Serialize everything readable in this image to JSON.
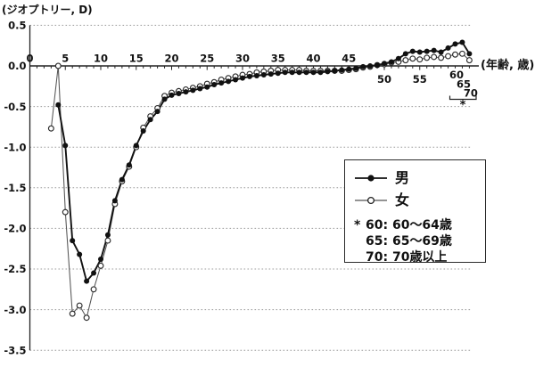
{
  "chart_data": {
    "type": "line",
    "title": "(ジオプトリー, D)",
    "x_unit_label": "(年齢, 歳)",
    "xlabel": "年齢 (歳)",
    "ylabel": "ジオプトリー (D)",
    "ylim": [
      -3.5,
      0.5
    ],
    "grid": "dotted horizontal gridlines every 0.5 D; solid axis at 0.0",
    "legend_position": "right-center boxed",
    "y_tick_labels": [
      "0.5",
      "0.0",
      "-0.5",
      "-1.0",
      "-1.5",
      "-2.0",
      "-2.5",
      "-3.0",
      "-3.5"
    ],
    "x_tick_labels_above_axis": [
      "0",
      "5",
      "10",
      "15",
      "20",
      "25",
      "30",
      "35",
      "40",
      "45"
    ],
    "x_tick_labels_below_axis": [
      "50",
      "55"
    ],
    "x_category_ticks": [
      {
        "label": "60",
        "position": 60,
        "meaning": "60〜64歳"
      },
      {
        "label": "65",
        "position": 61,
        "meaning": "65〜69歳"
      },
      {
        "label": "70",
        "position": 62,
        "meaning": "70歳以上"
      }
    ],
    "category_footnote_symbol": "*",
    "series": [
      {
        "name": "女",
        "marker": "open-circle",
        "line_color": "#555555",
        "x": [
          3,
          4,
          5,
          6,
          7,
          8,
          9,
          10,
          11,
          12,
          13,
          14,
          15,
          16,
          17,
          18,
          19,
          20,
          21,
          22,
          23,
          24,
          25,
          26,
          27,
          28,
          29,
          30,
          31,
          32,
          33,
          34,
          35,
          36,
          37,
          38,
          39,
          40,
          41,
          42,
          43,
          44,
          45,
          46,
          47,
          48,
          49,
          50,
          51,
          52,
          53,
          54,
          55,
          56,
          57,
          58,
          59,
          60,
          61,
          62
        ],
        "y": [
          -0.77,
          0.0,
          -1.8,
          -3.05,
          -2.95,
          -3.1,
          -2.75,
          -2.46,
          -2.15,
          -1.7,
          -1.42,
          -1.24,
          -1.0,
          -0.76,
          -0.62,
          -0.52,
          -0.37,
          -0.33,
          -0.31,
          -0.29,
          -0.27,
          -0.25,
          -0.22,
          -0.2,
          -0.17,
          -0.15,
          -0.13,
          -0.11,
          -0.1,
          -0.08,
          -0.07,
          -0.06,
          -0.05,
          -0.05,
          -0.05,
          -0.05,
          -0.06,
          -0.06,
          -0.06,
          -0.06,
          -0.06,
          -0.06,
          -0.05,
          -0.04,
          -0.02,
          -0.01,
          0.01,
          0.02,
          0.04,
          0.05,
          0.07,
          0.09,
          0.08,
          0.1,
          0.11,
          0.1,
          0.12,
          0.14,
          0.15,
          0.07
        ]
      },
      {
        "name": "男",
        "marker": "filled-circle",
        "line_color": "#111111",
        "x": [
          4,
          5,
          6,
          7,
          8,
          9,
          10,
          11,
          12,
          13,
          14,
          15,
          16,
          17,
          18,
          19,
          20,
          21,
          22,
          23,
          24,
          25,
          26,
          27,
          28,
          29,
          30,
          31,
          32,
          33,
          34,
          35,
          36,
          37,
          38,
          39,
          40,
          41,
          42,
          43,
          44,
          45,
          46,
          47,
          48,
          49,
          50,
          51,
          52,
          53,
          54,
          55,
          56,
          57,
          58,
          59,
          60,
          61,
          62
        ],
        "y": [
          -0.48,
          -0.98,
          -2.15,
          -2.32,
          -2.65,
          -2.55,
          -2.38,
          -2.08,
          -1.66,
          -1.4,
          -1.22,
          -0.98,
          -0.8,
          -0.66,
          -0.56,
          -0.41,
          -0.36,
          -0.34,
          -0.32,
          -0.3,
          -0.28,
          -0.26,
          -0.23,
          -0.21,
          -0.19,
          -0.17,
          -0.15,
          -0.13,
          -0.12,
          -0.11,
          -0.1,
          -0.09,
          -0.08,
          -0.08,
          -0.08,
          -0.08,
          -0.08,
          -0.08,
          -0.07,
          -0.06,
          -0.05,
          -0.04,
          -0.03,
          -0.01,
          0.0,
          0.01,
          0.03,
          0.05,
          0.09,
          0.15,
          0.18,
          0.17,
          0.18,
          0.19,
          0.17,
          0.22,
          0.27,
          0.29,
          0.15
        ]
      }
    ]
  },
  "legend": {
    "male_label": "男",
    "female_label": "女",
    "footnote_symbol": "*",
    "notes": [
      "60: 60〜64歳",
      "65: 65〜69歳",
      "70: 70歳以上"
    ]
  }
}
